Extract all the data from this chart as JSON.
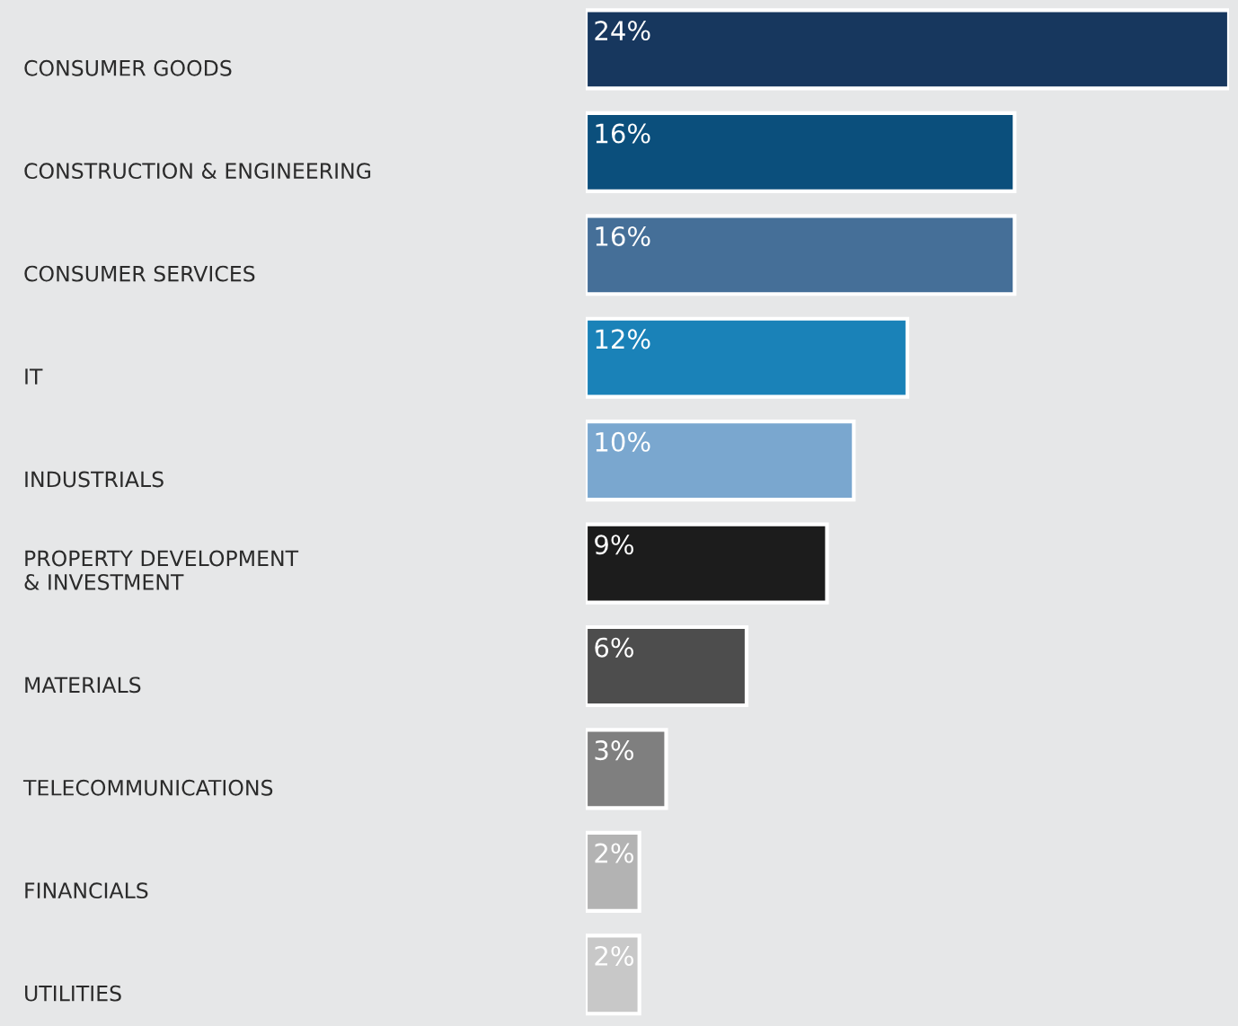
{
  "chart_data": {
    "type": "bar",
    "orientation": "horizontal",
    "grid": false,
    "legend": false,
    "value_labels": [
      "24%",
      "16%",
      "16%",
      "12%",
      "10%",
      "9%",
      "6%",
      "3%",
      "2%",
      "2%"
    ],
    "categories": [
      "CONSUMER GOODS",
      "CONSTRUCTION & ENGINEERING",
      "CONSUMER SERVICES",
      "IT",
      "INDUSTRIALS",
      "PROPERTY DEVELOPMENT\n& INVESTMENT",
      "MATERIALS",
      "TELECOMMUNICATIONS",
      "FINANCIALS",
      "UTILITIES"
    ],
    "values": [
      24,
      16,
      16,
      12,
      10,
      9,
      6,
      3,
      2,
      2
    ],
    "colors": [
      "#17375e",
      "#0b4f7c",
      "#456f98",
      "#1a82b8",
      "#7aa7cf",
      "#1c1c1c",
      "#4d4d4d",
      "#7f7f7f",
      "#b3b3b3",
      "#c8c8c8"
    ]
  }
}
